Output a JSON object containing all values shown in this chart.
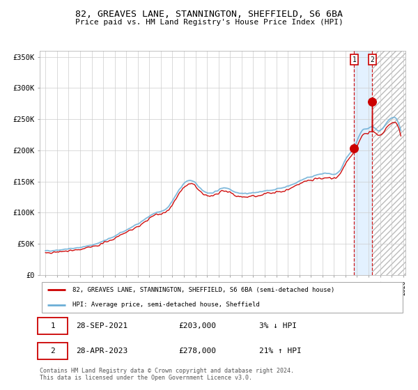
{
  "title_line1": "82, GREAVES LANE, STANNINGTON, SHEFFIELD, S6 6BA",
  "title_line2": "Price paid vs. HM Land Registry's House Price Index (HPI)",
  "ylabel_ticks": [
    "£0",
    "£50K",
    "£100K",
    "£150K",
    "£200K",
    "£250K",
    "£300K",
    "£350K"
  ],
  "ylabel_values": [
    0,
    50000,
    100000,
    150000,
    200000,
    250000,
    300000,
    350000
  ],
  "ylim": [
    0,
    360000
  ],
  "xlim_start": 1994.5,
  "xlim_end": 2026.2,
  "hpi_color": "#6baed6",
  "price_color": "#cc0000",
  "sale1_date": 2021.75,
  "sale1_price": 203000,
  "sale2_date": 2023.33,
  "sale2_price": 278000,
  "legend_line1": "82, GREAVES LANE, STANNINGTON, SHEFFIELD, S6 6BA (semi-detached house)",
  "legend_line2": "HPI: Average price, semi-detached house, Sheffield",
  "annotation1_label": "1",
  "annotation1_date": "28-SEP-2021",
  "annotation1_price": "£203,000",
  "annotation1_hpi": "3% ↓ HPI",
  "annotation2_label": "2",
  "annotation2_date": "28-APR-2023",
  "annotation2_price": "£278,000",
  "annotation2_hpi": "21% ↑ HPI",
  "footer": "Contains HM Land Registry data © Crown copyright and database right 2024.\nThis data is licensed under the Open Government Licence v3.0.",
  "background_color": "#ffffff",
  "plot_bg_color": "#ffffff",
  "grid_color": "#cccccc",
  "shade_color": "#ddeeff",
  "shade_start": 2021.75,
  "shade_end": 2023.33,
  "hatch_start": 2023.33,
  "hatch_end": 2026.2
}
